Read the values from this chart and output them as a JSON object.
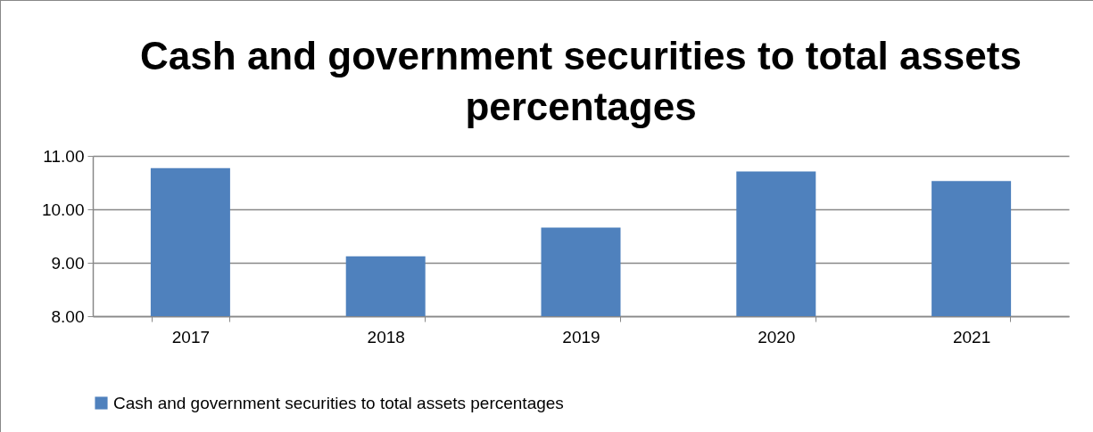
{
  "chart_data": {
    "type": "bar",
    "title": "Cash and government securities to total assets percentages",
    "categories": [
      "2017",
      "2018",
      "2019",
      "2020",
      "2021"
    ],
    "series": [
      {
        "name": "Cash and government securities to total assets percentages",
        "color": "#4f81bd",
        "values": [
          10.77,
          9.12,
          9.66,
          10.71,
          10.53
        ]
      }
    ],
    "ylim": [
      8,
      11
    ],
    "yticks": [
      {
        "value": 8,
        "label": "8.00"
      },
      {
        "value": 9,
        "label": "9.00"
      },
      {
        "value": 10,
        "label": "10.00"
      },
      {
        "value": 11,
        "label": "11.00"
      }
    ],
    "grid": "y",
    "legend": "bottom"
  }
}
